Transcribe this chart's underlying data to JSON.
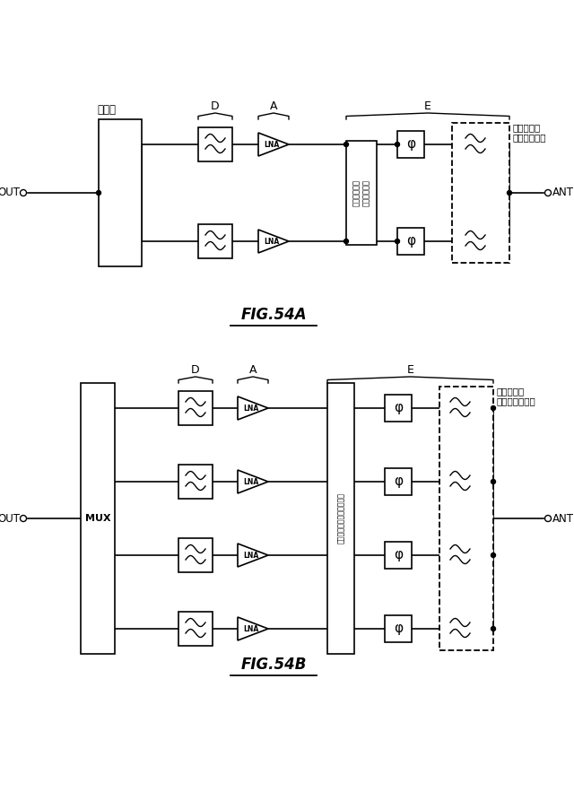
{
  "bg_color": "#ffffff",
  "line_color": "#000000",
  "fig_width": 6.4,
  "fig_height": 8.83,
  "fig54a_title": "FIG.54A",
  "fig54b_title": "FIG.54B",
  "combiner_label": "結合器",
  "mux_label": "MUX",
  "out_label": "OUT",
  "ant_label": "ANT",
  "switch_label_a": "スイッチング\nネットワーク",
  "switch_label_b": "スイッチングネットワーク",
  "filter_label_a": "フィルタ／\nダイプレクサ",
  "filter_label_b": "フィルタ／\nマルチプレクサ",
  "d_label": "D",
  "a_label": "A",
  "e_label": "E",
  "lna_label": "LNA",
  "phi_label": "φ"
}
